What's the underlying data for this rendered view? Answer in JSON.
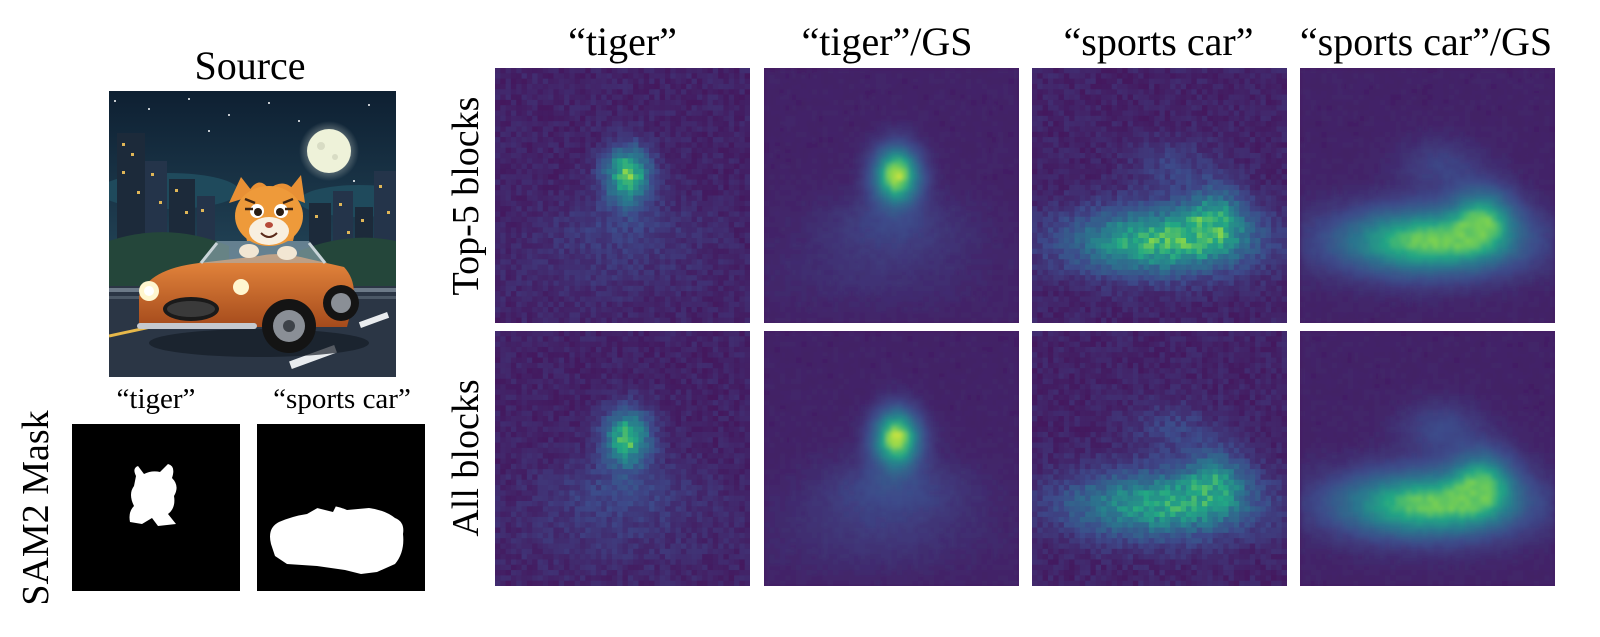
{
  "source": {
    "title": "Source"
  },
  "sam2": {
    "row_label": "SAM2 Mask",
    "masks": [
      {
        "label": "“tiger”"
      },
      {
        "label": "“sports car”"
      }
    ]
  },
  "grid": {
    "columns": [
      {
        "label": "“tiger”"
      },
      {
        "label": "“tiger”/GS"
      },
      {
        "label": "“sports car”"
      },
      {
        "label": "“sports car”/GS"
      }
    ],
    "rows": [
      {
        "label": "Top-5 blocks"
      },
      {
        "label": "All blocks"
      }
    ]
  },
  "colors": {
    "heatmap_background": "#45175e",
    "heatmap_mid": "#2c7a8c",
    "heatmap_high": "#d8e83a",
    "mask_background": "#000000",
    "mask_foreground": "#ffffff"
  }
}
